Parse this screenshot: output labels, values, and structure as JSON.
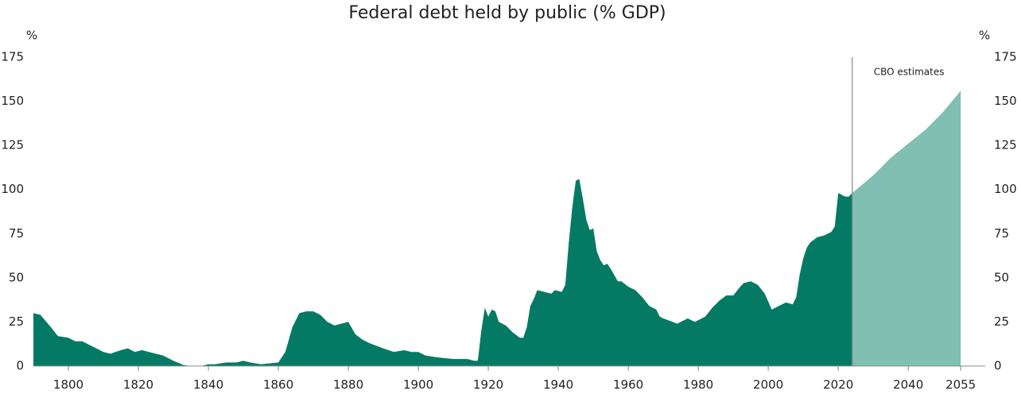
{
  "chart_data": {
    "type": "area",
    "title": "Federal debt held by public (% GDP)",
    "ylabel": "%",
    "y2label": "%",
    "xlim": [
      1790,
      2062
    ],
    "xticks": [
      1800,
      1820,
      1840,
      1860,
      1880,
      1900,
      1920,
      1940,
      1960,
      1980,
      2000,
      2020,
      2040,
      2055
    ],
    "ylim": [
      0,
      175
    ],
    "yticks": [
      0,
      25,
      50,
      75,
      100,
      125,
      150,
      175
    ],
    "y2lim": [
      0,
      175
    ],
    "y2ticks": [
      0,
      25,
      50,
      75,
      100,
      125,
      150,
      175
    ],
    "series": [
      {
        "color": "#047a64",
        "x": [
          1790,
          1792,
          1795,
          1797,
          1800,
          1802,
          1804,
          1806,
          1808,
          1810,
          1812,
          1815,
          1817,
          1819,
          1821,
          1823,
          1825,
          1827,
          1830,
          1833,
          1835,
          1838,
          1840,
          1842,
          1845,
          1848,
          1850,
          1852,
          1855,
          1860,
          1862,
          1864,
          1866,
          1868,
          1870,
          1872,
          1874,
          1876,
          1878,
          1880,
          1882,
          1884,
          1886,
          1890,
          1893,
          1896,
          1898,
          1900,
          1902,
          1905,
          1910,
          1914,
          1916,
          1917,
          1918,
          1919,
          1920,
          1921,
          1922,
          1923,
          1925,
          1927,
          1929,
          1930,
          1931,
          1932,
          1933,
          1934,
          1936,
          1938,
          1939,
          1941,
          1942,
          1943,
          1944,
          1945,
          1946,
          1947,
          1948,
          1949,
          1950,
          1951,
          1952,
          1953,
          1954,
          1955,
          1957,
          1958,
          1960,
          1962,
          1964,
          1966,
          1968,
          1969,
          1970,
          1974,
          1975,
          1977,
          1979,
          1980,
          1982,
          1984,
          1986,
          1988,
          1990,
          1992,
          1993,
          1995,
          1997,
          1999,
          2001,
          2003,
          2005,
          2007,
          2008,
          2009,
          2010,
          2011,
          2012,
          2014,
          2016,
          2018,
          2019,
          2020,
          2022,
          2023,
          2024
        ],
        "values": [
          30,
          29,
          22,
          17,
          16,
          14,
          14,
          12,
          10,
          8,
          7,
          9,
          10,
          8,
          9,
          8,
          7,
          6,
          3,
          0.5,
          0,
          0,
          1,
          1,
          2,
          2,
          3,
          2,
          1,
          2,
          8,
          22,
          30,
          31,
          31,
          29,
          25,
          23,
          24,
          25,
          18,
          15,
          13,
          10,
          8,
          9,
          8,
          8,
          6,
          5,
          4,
          4,
          3,
          3,
          20,
          33,
          28,
          32,
          31,
          25,
          23,
          19,
          16,
          16,
          22,
          34,
          38,
          43,
          42,
          41,
          43,
          42,
          46,
          70,
          90,
          105,
          106,
          95,
          83,
          77,
          78,
          65,
          60,
          57,
          58,
          55,
          48,
          48,
          45,
          43,
          39,
          34,
          32,
          28,
          27,
          24,
          25,
          27,
          25,
          26,
          28,
          33,
          37,
          40,
          40,
          45,
          47,
          48,
          46,
          41,
          32,
          34,
          36,
          35,
          39,
          52,
          61,
          67,
          70,
          73,
          74,
          76,
          79,
          98,
          96,
          96,
          98
        ]
      },
      {
        "color": "#80bfb2",
        "x": [
          2024,
          2030,
          2035,
          2040,
          2045,
          2050,
          2055
        ],
        "values": [
          98,
          108,
          118,
          126,
          134,
          144,
          156
        ]
      }
    ],
    "annotations": [
      {
        "text": "CBO estimates",
        "x": 2024
      }
    ]
  }
}
